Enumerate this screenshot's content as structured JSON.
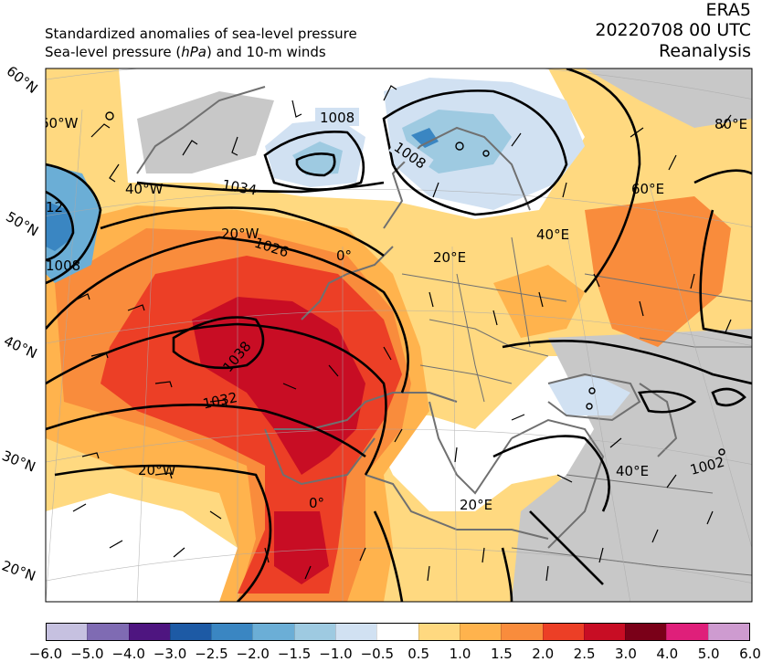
{
  "header": {
    "title_line1": "Standardized anomalies of sea-level pressure",
    "title_line2_prefix": "Sea-level pressure (",
    "title_line2_unit": "hPa",
    "title_line2_suffix": ") and 10-m winds",
    "dataset": "ERA5",
    "datetime": "20220708 00 UTC",
    "product": "Reanalysis"
  },
  "map": {
    "lat_labels": [
      "60°N",
      "50°N",
      "40°N",
      "30°N",
      "20°N"
    ],
    "lon_labels": [
      "60°W",
      "40°W",
      "20°W",
      "0°",
      "20°E",
      "40°E",
      "60°E",
      "80°E",
      "20°W",
      "0°",
      "20°E",
      "40°E"
    ],
    "isobar_labels": [
      "1008",
      "1008",
      "1026",
      "1038",
      "1032",
      "1002",
      "1034",
      "1008",
      "12"
    ]
  },
  "colorbar": {
    "ticks": [
      "−6.0",
      "−5.0",
      "−4.0",
      "−3.0",
      "−2.5",
      "−2.0",
      "−1.5",
      "−1.0",
      "−0.5",
      "0.5",
      "1.0",
      "1.5",
      "2.0",
      "2.5",
      "3.0",
      "4.0",
      "5.0",
      "6.0"
    ],
    "colors": [
      "#c6c1e0",
      "#7f6bb3",
      "#4e1580",
      "#1d5aa5",
      "#3a86c2",
      "#6baed6",
      "#9ecae1",
      "#d1e1f2",
      "#ffffff",
      "#ffd980",
      "#ffb34d",
      "#f98c3c",
      "#ec3f26",
      "#c80d24",
      "#7a0018",
      "#df1f7a",
      "#ce9bd0"
    ]
  }
}
